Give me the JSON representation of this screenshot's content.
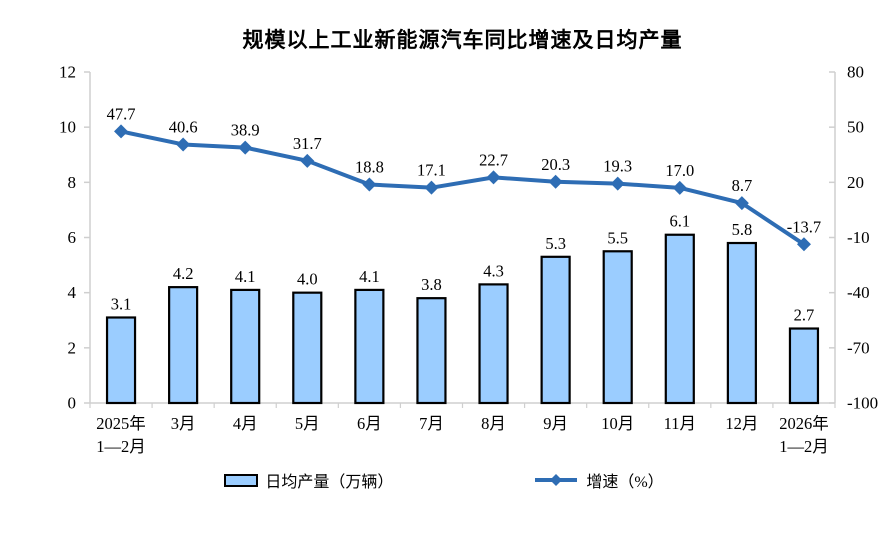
{
  "title": "规模以上工业新能源汽车同比增速及日均产量",
  "legend": {
    "bar_label": "日均产量（万辆）",
    "line_label": "增速（%）"
  },
  "colors": {
    "bar_fill": "#9BCDFF",
    "bar_border": "#000000",
    "line": "#2E6DB4",
    "axis": "#CFCFCF",
    "text": "#000000"
  },
  "chart_data": {
    "type": "bar",
    "subtype": "bar+line-dual-axis",
    "title": "规模以上工业新能源汽车同比增速及日均产量",
    "categories": [
      "2025年\n1—2月",
      "3月",
      "4月",
      "5月",
      "6月",
      "7月",
      "8月",
      "9月",
      "10月",
      "11月",
      "12月",
      "2026年\n1—2月"
    ],
    "series": [
      {
        "name": "日均产量（万辆）",
        "type": "bar",
        "axis": "left",
        "values": [
          3.1,
          4.2,
          4.1,
          4.0,
          4.1,
          3.8,
          4.3,
          5.3,
          5.5,
          6.1,
          5.8,
          2.7
        ]
      },
      {
        "name": "增速（%）",
        "type": "line",
        "axis": "right",
        "values": [
          47.7,
          40.6,
          38.9,
          31.7,
          18.8,
          17.1,
          22.7,
          20.3,
          19.3,
          17.0,
          8.7,
          -13.7
        ]
      }
    ],
    "left_axis": {
      "min": 0,
      "max": 12,
      "ticks": [
        0,
        2,
        4,
        6,
        8,
        10,
        12
      ]
    },
    "right_axis": {
      "min": -100,
      "max": 80,
      "ticks": [
        -100,
        -70,
        -40,
        -10,
        20,
        50,
        80
      ]
    },
    "grid": false,
    "legend_position": "bottom",
    "data_labels": true
  }
}
